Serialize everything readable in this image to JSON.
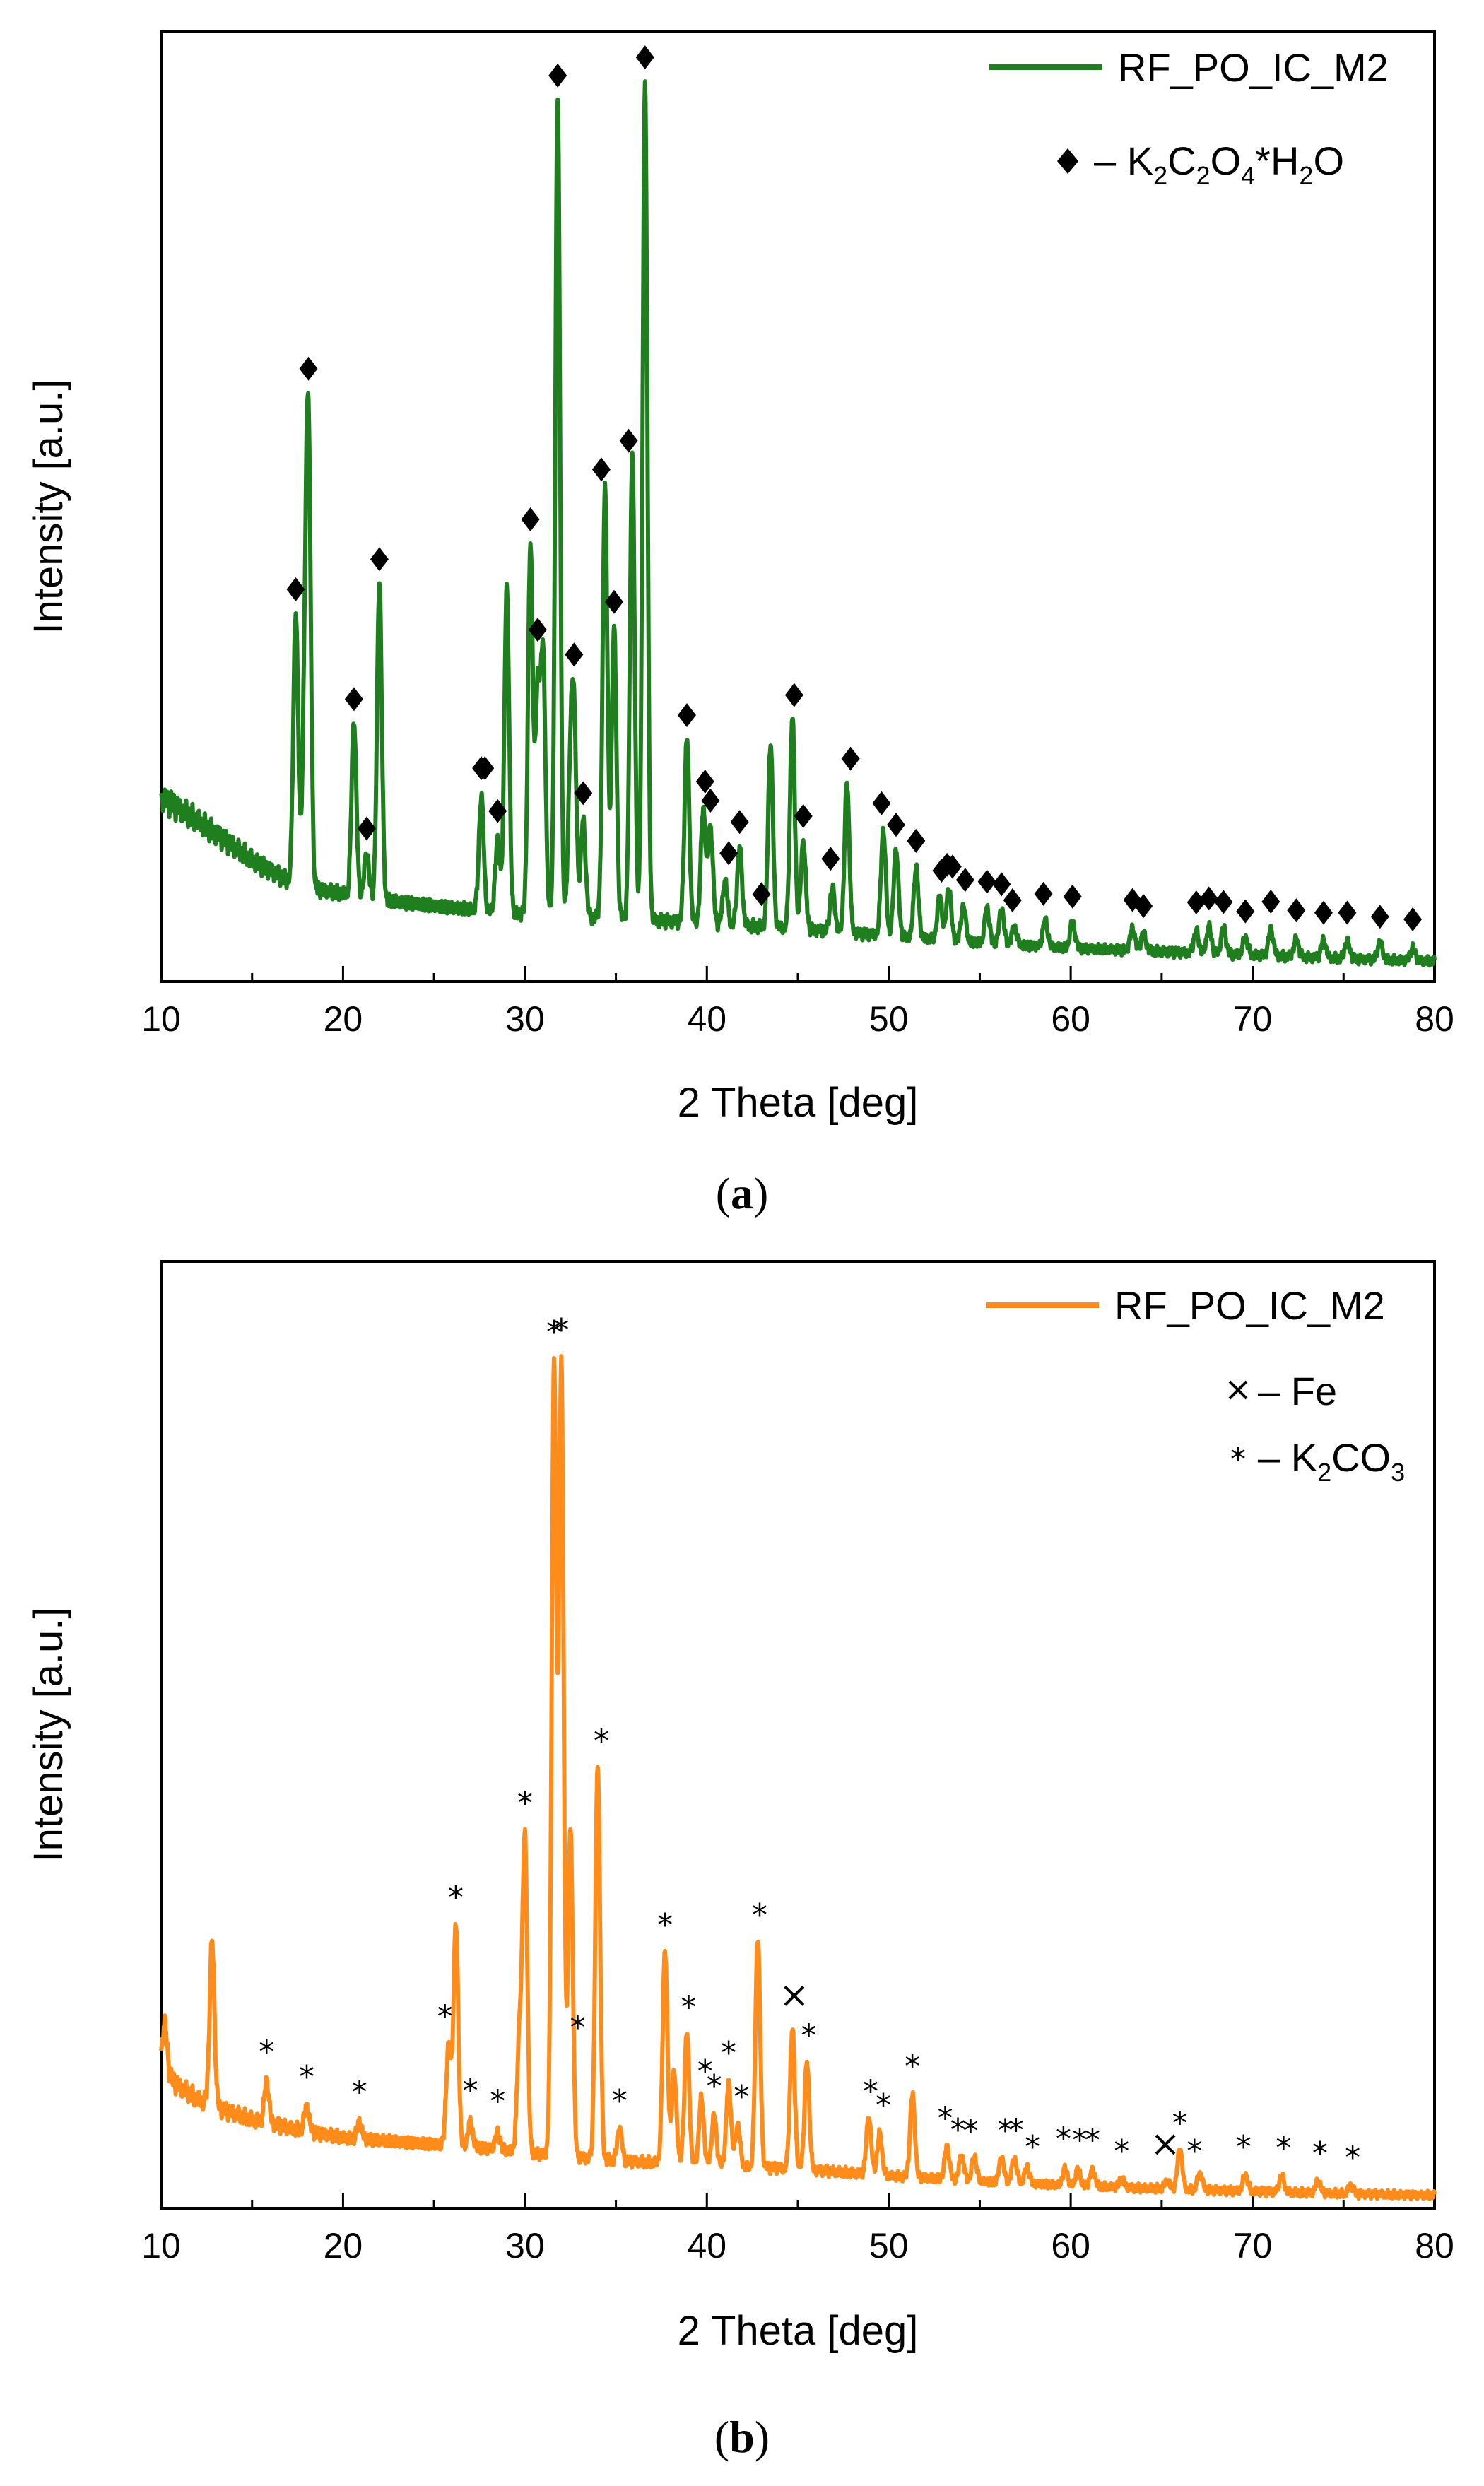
{
  "chart_data": [
    {
      "type": "line",
      "panel": "a",
      "caption_label": "a",
      "xlabel": "2 Theta [deg]",
      "ylabel": "Intensity [a.u.]",
      "xlim": [
        10,
        80
      ],
      "ylim": [
        0,
        100
      ],
      "xticks": [
        "10",
        "20",
        "30",
        "40",
        "50",
        "60",
        "70",
        "80"
      ],
      "color": "#1f7f1f",
      "series": [
        {
          "name": "RF_PO_IC_M2"
        }
      ],
      "legend": {
        "series_label": "RF_PO_IC_M2",
        "marker_key": {
          "symbol": "diamond",
          "text": "– K2C2O4*H2O",
          "parts": {
            "prefix": "– K",
            "s1": "2",
            "m1": "C",
            "s2": "2",
            "m2": "O",
            "s3": "4",
            "m3": "*H",
            "s4": "2",
            "m4": "O"
          }
        }
      },
      "background": [
        [
          10,
          20
        ],
        [
          10.5,
          19.5
        ],
        [
          11,
          18.8
        ],
        [
          12,
          17.5
        ],
        [
          13,
          16
        ],
        [
          14,
          14.5
        ],
        [
          15,
          13
        ],
        [
          16,
          11.8
        ],
        [
          17,
          10.6
        ],
        [
          19,
          9.5
        ],
        [
          22,
          8.5
        ],
        [
          25,
          7.8
        ],
        [
          28,
          7.2
        ],
        [
          30,
          6.8
        ],
        [
          35,
          6.4
        ],
        [
          40,
          5.8
        ],
        [
          45,
          5.2
        ],
        [
          50,
          4.4
        ],
        [
          55,
          3.6
        ],
        [
          60,
          3
        ],
        [
          65,
          2.6
        ],
        [
          70,
          2.2
        ],
        [
          75,
          1.8
        ],
        [
          80,
          1.5
        ]
      ],
      "peaks": [
        [
          17.4,
          31
        ],
        [
          17.9,
          19
        ],
        [
          18.1,
          50
        ],
        [
          20.6,
          20
        ],
        [
          21.3,
          5
        ],
        [
          22.0,
          36
        ],
        [
          27.6,
          13
        ],
        [
          28.5,
          8
        ],
        [
          29.0,
          37
        ],
        [
          30.3,
          42
        ],
        [
          30.7,
          25
        ],
        [
          31.0,
          29
        ],
        [
          31.8,
          93
        ],
        [
          32.5,
          15
        ],
        [
          32.7,
          21
        ],
        [
          33.2,
          11
        ],
        [
          34.4,
          49
        ],
        [
          34.9,
          33
        ],
        [
          35.9,
          53
        ],
        [
          36.6,
          95
        ],
        [
          38.9,
          21
        ],
        [
          39.8,
          13
        ],
        [
          40.2,
          11
        ],
        [
          41.0,
          5
        ],
        [
          41.8,
          9
        ],
        [
          43.5,
          21
        ],
        [
          44.7,
          24
        ],
        [
          45.3,
          10
        ],
        [
          46.9,
          5
        ],
        [
          47.7,
          17
        ],
        [
          49.7,
          12
        ],
        [
          50.4,
          10
        ],
        [
          51.5,
          8
        ],
        [
          52.8,
          5
        ],
        [
          53.3,
          6
        ],
        [
          54.1,
          4
        ],
        [
          55.4,
          4
        ],
        [
          56.2,
          4
        ],
        [
          56.9,
          2
        ],
        [
          58.6,
          3
        ],
        [
          60.1,
          3
        ],
        [
          63.4,
          2.5
        ],
        [
          64.0,
          2
        ],
        [
          66.9,
          2.5
        ],
        [
          67.6,
          3
        ],
        [
          68.4,
          3
        ],
        [
          69.6,
          2
        ],
        [
          71.0,
          3
        ],
        [
          72.4,
          2
        ],
        [
          73.9,
          2
        ],
        [
          75.2,
          2
        ],
        [
          77.0,
          2
        ],
        [
          78.8,
          1.5
        ]
      ],
      "marker_positions": [
        17.4,
        18.1,
        20.6,
        21.3,
        22.0,
        27.6,
        27.8,
        28.5,
        30.3,
        30.7,
        31.8,
        32.7,
        33.2,
        34.2,
        34.9,
        35.7,
        36.6,
        38.9,
        39.9,
        40.2,
        41.2,
        41.8,
        43.0,
        44.8,
        45.3,
        46.8,
        47.9,
        49.6,
        50.4,
        51.5,
        52.9,
        53.2,
        53.5,
        54.2,
        55.4,
        56.2,
        56.8,
        58.5,
        60.1,
        63.4,
        64.0,
        66.9,
        67.6,
        68.4,
        69.6,
        71.0,
        72.4,
        73.9,
        75.2,
        77.0,
        78.8
      ],
      "marker_symbol": "diamond"
    },
    {
      "type": "line",
      "panel": "b",
      "caption_label": "b",
      "xlabel": "2 Theta [deg]",
      "ylabel": "Intensity [a.u.]",
      "xlim": [
        10,
        80
      ],
      "ylim": [
        0,
        100
      ],
      "xticks": [
        "10",
        "20",
        "30",
        "40",
        "50",
        "60",
        "70",
        "80"
      ],
      "color": "#ff8c1a",
      "series": [
        {
          "name": "RF_PO_IC_M2"
        }
      ],
      "legend": {
        "series_label": "RF_PO_IC_M2",
        "fe_key": {
          "symbol": "×",
          "text": "– Fe"
        },
        "k2co3_key": {
          "symbol": "*",
          "text": "– K2CO3",
          "parts": {
            "prefix": "– K",
            "s1": "2",
            "m1": "CO",
            "s2": "3"
          }
        }
      },
      "background": [
        [
          10,
          16
        ],
        [
          10.5,
          15
        ],
        [
          11,
          14
        ],
        [
          12,
          12.5
        ],
        [
          13,
          11.5
        ],
        [
          15,
          10
        ],
        [
          17,
          9
        ],
        [
          20,
          7.8
        ],
        [
          25,
          7
        ],
        [
          28,
          6.5
        ],
        [
          30,
          6
        ],
        [
          35,
          5
        ],
        [
          40,
          4.5
        ],
        [
          45,
          4
        ],
        [
          50,
          3.2
        ],
        [
          55,
          2.5
        ],
        [
          60,
          2
        ],
        [
          65,
          1.6
        ],
        [
          70,
          1.3
        ],
        [
          75,
          1
        ],
        [
          80,
          0.8
        ]
      ],
      "peaks": [
        [
          10.2,
          6
        ],
        [
          12.8,
          20
        ],
        [
          15.8,
          5
        ],
        [
          18.0,
          3
        ],
        [
          20.9,
          2
        ],
        [
          25.8,
          12
        ],
        [
          26.2,
          27
        ],
        [
          27.0,
          3
        ],
        [
          28.5,
          2
        ],
        [
          29.7,
          14
        ],
        [
          30.0,
          38
        ],
        [
          31.6,
          96
        ],
        [
          32.0,
          96
        ],
        [
          32.5,
          40
        ],
        [
          34.0,
          48
        ],
        [
          35.2,
          4
        ],
        [
          37.7,
          26
        ],
        [
          38.2,
          11
        ],
        [
          38.9,
          16
        ],
        [
          39.7,
          8
        ],
        [
          40.4,
          6
        ],
        [
          41.2,
          10
        ],
        [
          41.7,
          5
        ],
        [
          42.8,
          28
        ],
        [
          44.7,
          17
        ],
        [
          45.5,
          13
        ],
        [
          48.9,
          7
        ],
        [
          49.5,
          5
        ],
        [
          51.3,
          10
        ],
        [
          53.2,
          4
        ],
        [
          54.0,
          3
        ],
        [
          54.7,
          3
        ],
        [
          56.2,
          3
        ],
        [
          56.9,
          3
        ],
        [
          57.6,
          2
        ],
        [
          59.7,
          2
        ],
        [
          60.4,
          2
        ],
        [
          61.2,
          2
        ],
        [
          62.8,
          1
        ],
        [
          65.3,
          1
        ],
        [
          66.0,
          5
        ],
        [
          67.1,
          2
        ],
        [
          69.6,
          2
        ],
        [
          71.6,
          2
        ],
        [
          73.6,
          1.5
        ],
        [
          75.4,
          1
        ]
      ],
      "star_positions": [
        15.8,
        18.0,
        20.9,
        25.6,
        26.2,
        27.0,
        28.5,
        30.0,
        31.6,
        32.0,
        32.9,
        34.2,
        35.2,
        37.7,
        39.0,
        39.9,
        40.4,
        41.2,
        41.9,
        42.9,
        45.6,
        49.0,
        49.7,
        51.3,
        53.1,
        53.8,
        54.5,
        56.4,
        57.0,
        57.9,
        59.6,
        60.5,
        61.2,
        62.8,
        66.0,
        66.8,
        69.5,
        71.7,
        73.7,
        75.5
      ],
      "cross_positions": [
        44.8,
        65.2
      ]
    }
  ]
}
